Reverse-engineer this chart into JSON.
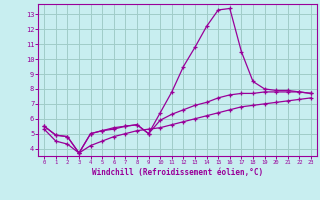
{
  "title": "",
  "xlabel": "Windchill (Refroidissement éolien,°C)",
  "bg_color": "#c8eef0",
  "grid_color": "#a0ccc8",
  "line_color": "#990099",
  "xlim": [
    -0.5,
    23.5
  ],
  "ylim": [
    3.5,
    13.7
  ],
  "xticks": [
    0,
    1,
    2,
    3,
    4,
    5,
    6,
    7,
    8,
    9,
    10,
    11,
    12,
    13,
    14,
    15,
    16,
    17,
    18,
    19,
    20,
    21,
    22,
    23
  ],
  "yticks": [
    4,
    5,
    6,
    7,
    8,
    9,
    10,
    11,
    12,
    13
  ],
  "line1_x": [
    0,
    1,
    2,
    3,
    4,
    5,
    6,
    7,
    8,
    9,
    10,
    11,
    12,
    13,
    14,
    15,
    16,
    17,
    18,
    19,
    20,
    21,
    22,
    23
  ],
  "line1_y": [
    5.5,
    4.9,
    4.8,
    3.7,
    5.0,
    5.2,
    5.4,
    5.5,
    5.6,
    5.0,
    6.4,
    7.8,
    9.5,
    10.8,
    12.2,
    13.3,
    13.4,
    10.5,
    8.5,
    8.0,
    7.9,
    7.9,
    7.8,
    7.7
  ],
  "line2_x": [
    0,
    1,
    2,
    3,
    4,
    5,
    6,
    7,
    8,
    9,
    10,
    11,
    12,
    13,
    14,
    15,
    16,
    17,
    18,
    19,
    20,
    21,
    22,
    23
  ],
  "line2_y": [
    5.5,
    4.9,
    4.8,
    3.7,
    5.0,
    5.2,
    5.3,
    5.5,
    5.6,
    5.0,
    5.9,
    6.3,
    6.6,
    6.9,
    7.1,
    7.4,
    7.6,
    7.7,
    7.7,
    7.8,
    7.8,
    7.8,
    7.8,
    7.7
  ],
  "line3_x": [
    0,
    1,
    2,
    3,
    4,
    5,
    6,
    7,
    8,
    9,
    10,
    11,
    12,
    13,
    14,
    15,
    16,
    17,
    18,
    19,
    20,
    21,
    22,
    23
  ],
  "line3_y": [
    5.3,
    4.5,
    4.3,
    3.7,
    4.2,
    4.5,
    4.8,
    5.0,
    5.2,
    5.3,
    5.4,
    5.6,
    5.8,
    6.0,
    6.2,
    6.4,
    6.6,
    6.8,
    6.9,
    7.0,
    7.1,
    7.2,
    7.3,
    7.4
  ]
}
